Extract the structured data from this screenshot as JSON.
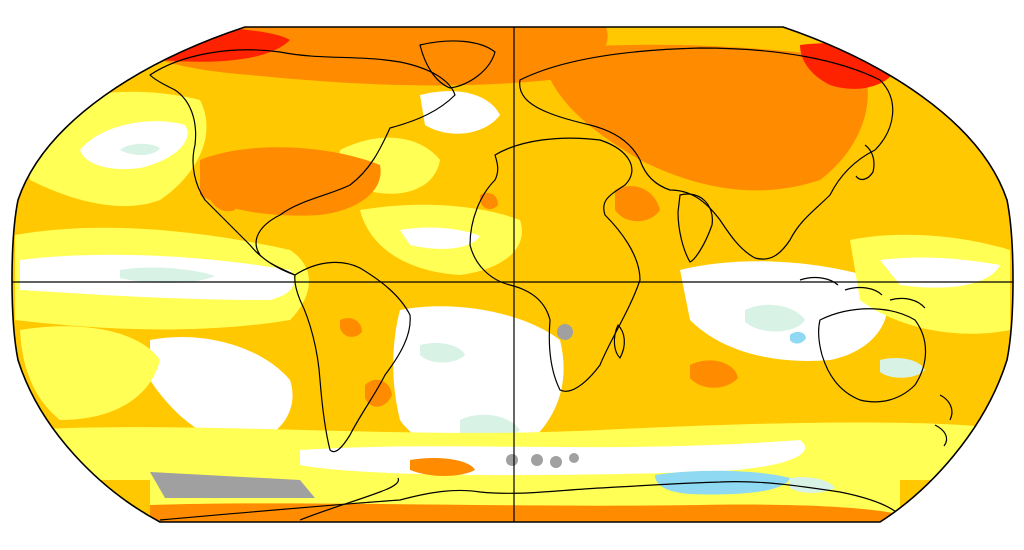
{
  "map": {
    "projection": "Robinson",
    "colors": {
      "no_data": "#a0a0a0",
      "cool_light": "#d8f2e6",
      "cool_blue": "#8fd9f2",
      "neutral": "#ffffff",
      "warm_1": "#ffff55",
      "warm_2": "#ffc800",
      "warm_3": "#ff8c00",
      "warm_4": "#ff2200",
      "coastline": "#000000"
    },
    "reference_lines": [
      "equator",
      "prime-meridian"
    ],
    "legend": "none"
  }
}
